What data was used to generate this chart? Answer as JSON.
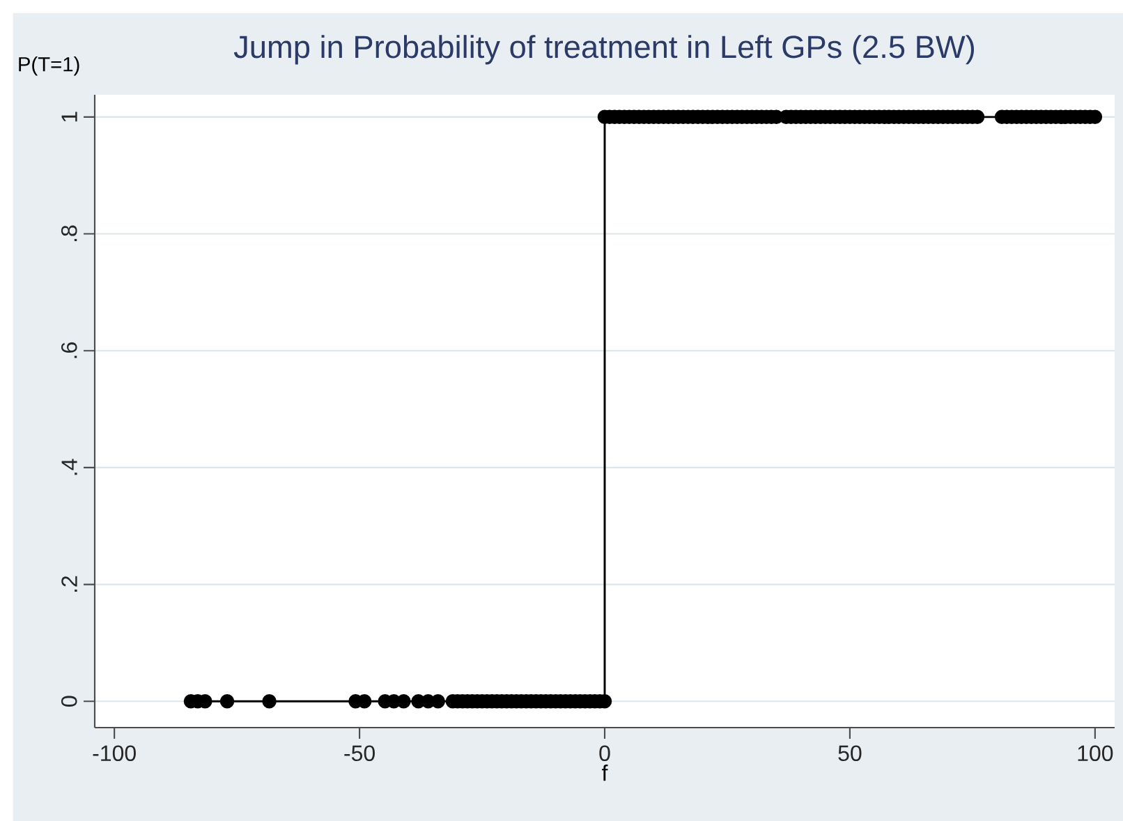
{
  "chart_data": {
    "type": "line",
    "title": "Jump in Probability of treatment in Left GPs (2.5 BW)",
    "xlabel": "f",
    "ylabel": "P(T=1)",
    "x": [
      -84.4,
      -83,
      -81.5,
      -77,
      -68.4,
      -50.8,
      -49,
      -44.8,
      -43,
      -41,
      -38,
      -36,
      -34,
      -31,
      -30,
      -29,
      -28,
      -27,
      -26,
      -25,
      -24,
      -23,
      -22,
      -21,
      -20,
      -19,
      -18,
      -17,
      -16,
      -15,
      -14,
      -13,
      -12,
      -11,
      -10,
      -9,
      -8,
      -7,
      -6,
      -5,
      -4,
      -3,
      -2,
      -1,
      0,
      0,
      1,
      2,
      3,
      4,
      5,
      6,
      7,
      8,
      9,
      10,
      11,
      12,
      13,
      14,
      15,
      16,
      17,
      18,
      19,
      20,
      21,
      22,
      23,
      24,
      25,
      26,
      27,
      28,
      29,
      30,
      31,
      32,
      33,
      34,
      35,
      37,
      38,
      39,
      40,
      41,
      42,
      43,
      44,
      45,
      46,
      47,
      48,
      49,
      50,
      51,
      52,
      53,
      54,
      55,
      56,
      57,
      58,
      59,
      60,
      61,
      62,
      63,
      64,
      65,
      66,
      67,
      68,
      69,
      70,
      71,
      72,
      73,
      74,
      75,
      76,
      81,
      82,
      83,
      84,
      85,
      86,
      87,
      88,
      89,
      90,
      91,
      92,
      93,
      94,
      95,
      96,
      97,
      98,
      99,
      100
    ],
    "series": [
      {
        "color": "#000000",
        "values": [
          0,
          0,
          0,
          0,
          0,
          0,
          0,
          0,
          0,
          0,
          0,
          0,
          0,
          0,
          0,
          0,
          0,
          0,
          0,
          0,
          0,
          0,
          0,
          0,
          0,
          0,
          0,
          0,
          0,
          0,
          0,
          0,
          0,
          0,
          0,
          0,
          0,
          0,
          0,
          0,
          0,
          0,
          0,
          0,
          0,
          1,
          1,
          1,
          1,
          1,
          1,
          1,
          1,
          1,
          1,
          1,
          1,
          1,
          1,
          1,
          1,
          1,
          1,
          1,
          1,
          1,
          1,
          1,
          1,
          1,
          1,
          1,
          1,
          1,
          1,
          1,
          1,
          1,
          1,
          1,
          1,
          1,
          1,
          1,
          1,
          1,
          1,
          1,
          1,
          1,
          1,
          1,
          1,
          1,
          1,
          1,
          1,
          1,
          1,
          1,
          1,
          1,
          1,
          1,
          1,
          1,
          1,
          1,
          1,
          1,
          1,
          1,
          1,
          1,
          1,
          1,
          1,
          1,
          1,
          1,
          1,
          1,
          1,
          1,
          1,
          1,
          1,
          1,
          1,
          1,
          1,
          1,
          1,
          1,
          1,
          1,
          1,
          1,
          1,
          1,
          1
        ]
      }
    ],
    "xlim": [
      -104,
      104
    ],
    "xticks": [
      -100,
      -50,
      0,
      50,
      100
    ],
    "ylim": [
      -0.045,
      1.038
    ],
    "yticks": [
      0,
      {
        "value": 0.2,
        "label": ".2"
      },
      {
        "value": 0.4,
        "label": ".4"
      },
      {
        "value": 0.6,
        "label": ".6"
      },
      {
        "value": 0.8,
        "label": ".8"
      },
      1
    ],
    "grid": "y",
    "marker": "circle",
    "line_style": "solid"
  }
}
